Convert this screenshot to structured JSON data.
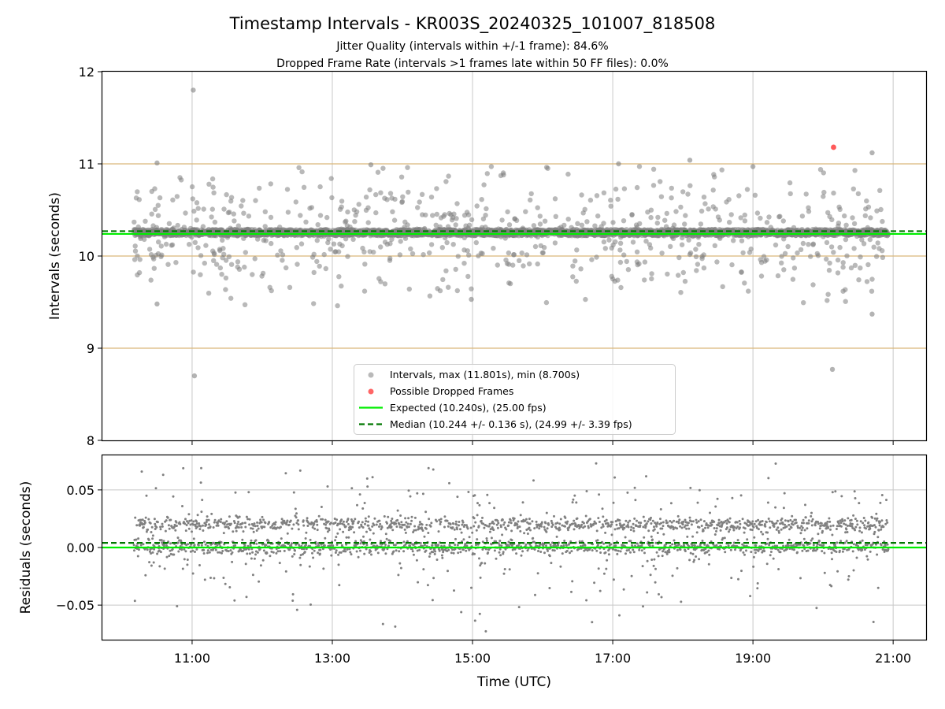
{
  "title": "Timestamp Intervals - KR003S_20240325_101007_818508",
  "subtitle_1": "Jitter Quality (intervals within +/-1 frame): 84.6%",
  "subtitle_2": "Dropped Frame Rate (intervals >1 frames late within 50 FF files): 0.0%",
  "colors": {
    "interval_points": "#808080",
    "dropped_points": "#ff0000",
    "expected_line": "#00ee00",
    "median_line": "#007700",
    "frame_band_lines": "#d9b77a",
    "grid": "#c8c8c8"
  },
  "chart_data": [
    {
      "id": "intervals",
      "type": "scatter",
      "ylabel": "Intervals (seconds)",
      "xlabel": "",
      "ylim": [
        8,
        12
      ],
      "yticks": [
        "8",
        "9",
        "10",
        "11",
        "12"
      ],
      "xlim_hours": [
        9.72,
        21.47
      ],
      "xticks": [
        "11:00",
        "13:00",
        "15:00",
        "17:00",
        "19:00",
        "21:00"
      ],
      "grid": "vertical",
      "frame_lines_y": [
        9.0,
        10.0,
        11.0
      ],
      "expected_y": 10.24,
      "median_y": 10.244,
      "legend_position": "lower center",
      "legend": {
        "intervals": "Intervals, max (11.801s), min (8.700s)",
        "dropped": "Possible Dropped Frames",
        "expected": "Expected (10.240s), (25.00 fps)",
        "median": "Median (10.244 +/- 0.136 s), (24.99 +/- 3.39 fps)"
      },
      "data_span_hours": [
        10.17,
        20.93
      ],
      "dense_band_y": [
        10.22,
        10.29
      ],
      "outliers": [
        {
          "x": "11:01",
          "y": 11.8
        },
        {
          "x": "11:02",
          "y": 8.7
        },
        {
          "x": "10:30",
          "y": 11.01
        },
        {
          "x": "10:30",
          "y": 9.48
        },
        {
          "x": "20:08",
          "y": 8.77
        },
        {
          "x": "20:42",
          "y": 9.37
        },
        {
          "x": "20:42",
          "y": 11.12
        },
        {
          "x": "18:06",
          "y": 11.04
        },
        {
          "x": "17:05",
          "y": 11.0
        },
        {
          "x": "13:33",
          "y": 10.99
        },
        {
          "x": "19:00",
          "y": 10.97
        },
        {
          "x": "14:59",
          "y": 9.53
        }
      ],
      "dropped_frames": [
        {
          "x": "20:09",
          "y": 11.18
        }
      ]
    },
    {
      "id": "residuals",
      "type": "scatter",
      "ylabel": "Residuals (seconds)",
      "xlabel": "Time (UTC)",
      "ylim": [
        -0.08,
        0.08
      ],
      "yticks": [
        "−0.05",
        "0.00",
        "0.05"
      ],
      "ytick_values": [
        -0.05,
        0.0,
        0.05
      ],
      "xticks": [
        "11:00",
        "13:00",
        "15:00",
        "17:00",
        "19:00",
        "21:00"
      ],
      "grid": "both",
      "expected_y": 0.0,
      "median_y": 0.004,
      "dense_bands_y": [
        0.0,
        0.02
      ]
    }
  ]
}
